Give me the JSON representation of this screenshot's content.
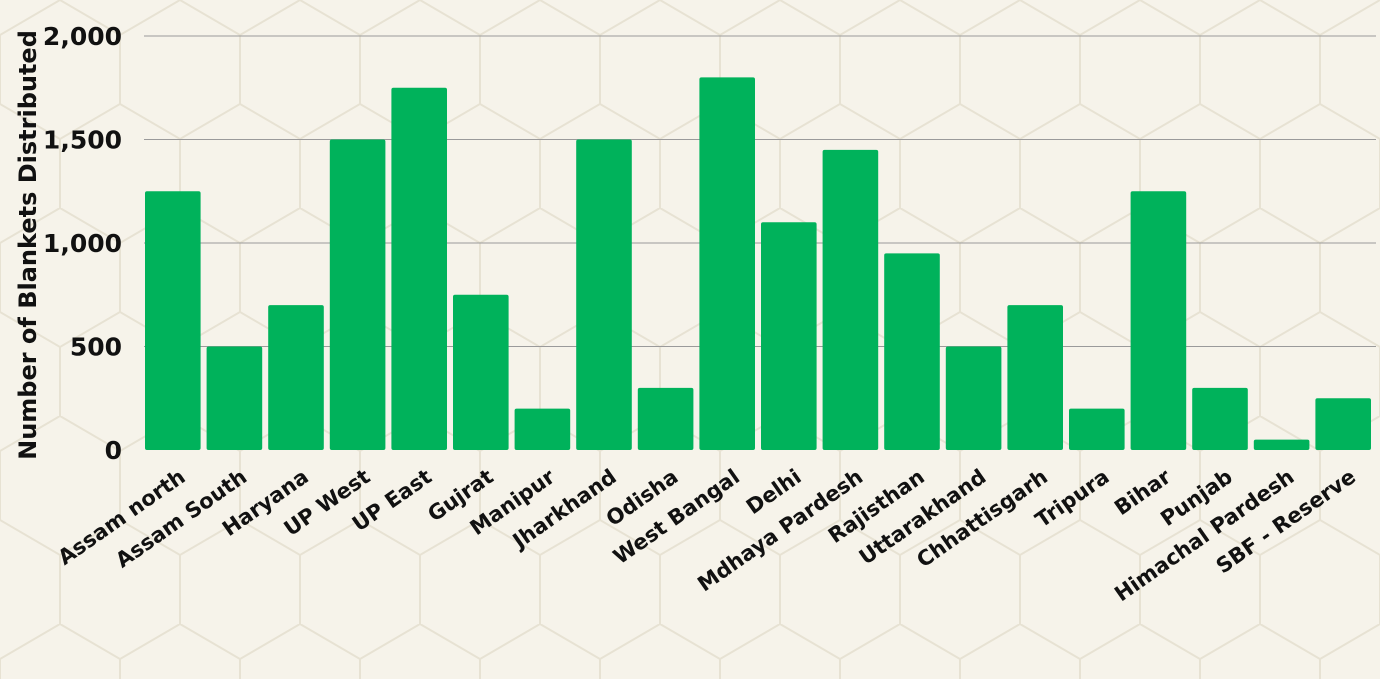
{
  "colors": {
    "background": "#f6f3ea",
    "pattern": "#e7e2d3",
    "bar": "#00b25b",
    "grid": "#9a9a9a",
    "text": "#111111"
  },
  "chart_data": {
    "type": "bar",
    "title": "",
    "xlabel": "",
    "ylabel": "Number of Blankets Distributed",
    "ylim": [
      0,
      2000
    ],
    "yticks": [
      0,
      500,
      1000,
      1500,
      2000
    ],
    "ytick_labels": [
      "0",
      "500",
      "1,000",
      "1,500",
      "2,000"
    ],
    "grid": true,
    "legend": "none",
    "categories": [
      "Assam north",
      "Assam South",
      "Haryana",
      "UP West",
      "UP East",
      "Gujrat",
      "Manipur",
      "Jharkhand",
      "Odisha",
      "West Bangal",
      "Delhi",
      "Mdhaya Pardesh",
      "Rajisthan",
      "Uttarakhand",
      "Chhattisgarh",
      "Tripura",
      "Bihar",
      "Punjab",
      "Himachal Pardesh",
      "SBF - Reserve"
    ],
    "values": [
      1250,
      500,
      700,
      1500,
      1750,
      750,
      200,
      1500,
      300,
      1800,
      1100,
      1450,
      950,
      500,
      700,
      200,
      1250,
      300,
      50,
      250
    ]
  }
}
